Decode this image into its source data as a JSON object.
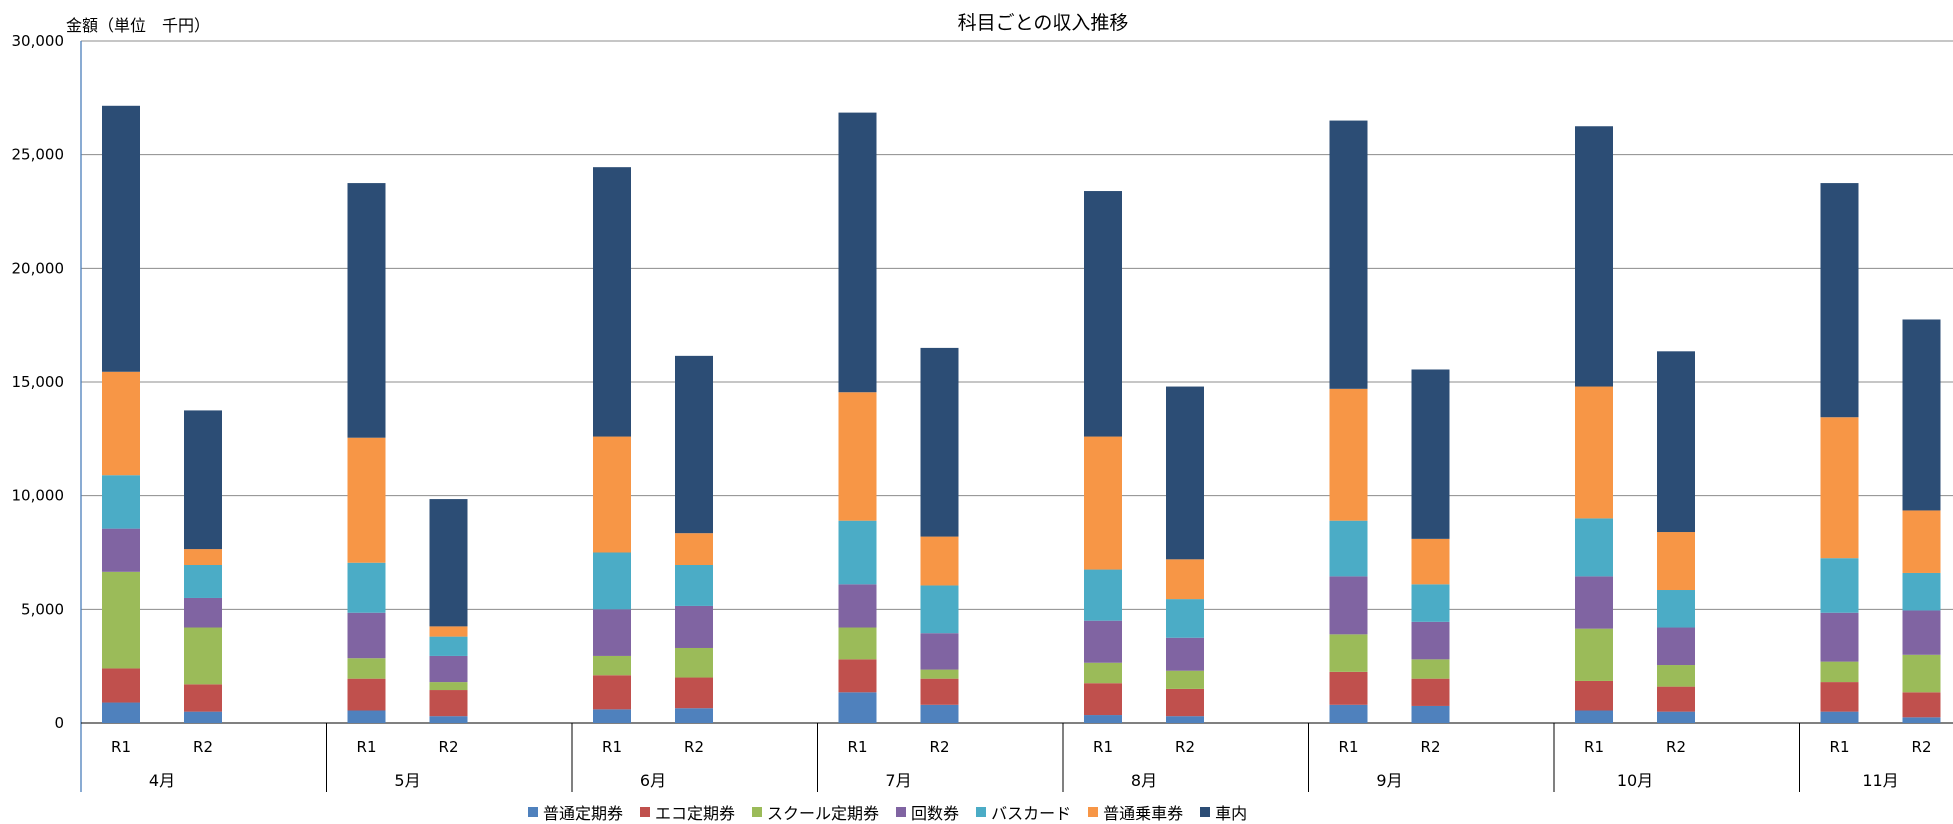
{
  "chart_data": {
    "type": "bar",
    "stacked": true,
    "title": "科目ごとの収入推移",
    "ylabel": "金額（単位　千円）",
    "ylim": [
      0,
      30000
    ],
    "yticks": [
      "0",
      "5,000",
      "10,000",
      "15,000",
      "20,000",
      "25,000",
      "30,000"
    ],
    "grid": true,
    "legend_position": "bottom",
    "months": [
      "4月",
      "5月",
      "6月",
      "7月",
      "8月",
      "9月",
      "10月",
      "11月"
    ],
    "sub_categories": [
      "R1",
      "R2"
    ],
    "series": [
      {
        "name": "普通定期券",
        "color": "#4f81bd",
        "values": [
          [
            900,
            500
          ],
          [
            550,
            300
          ],
          [
            600,
            650
          ],
          [
            1350,
            800
          ],
          [
            350,
            300
          ],
          [
            800,
            750
          ],
          [
            550,
            500
          ],
          [
            500,
            250
          ]
        ]
      },
      {
        "name": "エコ定期券",
        "color": "#c0504d",
        "values": [
          [
            1500,
            1200
          ],
          [
            1400,
            1150
          ],
          [
            1500,
            1350
          ],
          [
            1450,
            1150
          ],
          [
            1400,
            1200
          ],
          [
            1450,
            1200
          ],
          [
            1300,
            1100
          ],
          [
            1300,
            1100
          ]
        ]
      },
      {
        "name": "スクール定期券",
        "color": "#9bbb59",
        "values": [
          [
            4250,
            2500
          ],
          [
            900,
            350
          ],
          [
            850,
            1300
          ],
          [
            1400,
            400
          ],
          [
            900,
            800
          ],
          [
            1650,
            850
          ],
          [
            2300,
            950
          ],
          [
            900,
            1650
          ]
        ]
      },
      {
        "name": "回数券",
        "color": "#8064a2",
        "values": [
          [
            1900,
            1300
          ],
          [
            2000,
            1150
          ],
          [
            2050,
            1850
          ],
          [
            1900,
            1600
          ],
          [
            1850,
            1450
          ],
          [
            2550,
            1650
          ],
          [
            2300,
            1650
          ],
          [
            2150,
            1950
          ]
        ]
      },
      {
        "name": "バスカード",
        "color": "#4bacc6",
        "values": [
          [
            2350,
            1450
          ],
          [
            2200,
            850
          ],
          [
            2500,
            1800
          ],
          [
            2800,
            2100
          ],
          [
            2250,
            1700
          ],
          [
            2450,
            1650
          ],
          [
            2550,
            1650
          ],
          [
            2400,
            1650
          ]
        ]
      },
      {
        "name": "普通乗車券",
        "color": "#f79646",
        "values": [
          [
            4550,
            700
          ],
          [
            5500,
            450
          ],
          [
            5100,
            1400
          ],
          [
            5650,
            2150
          ],
          [
            5850,
            1750
          ],
          [
            5800,
            2000
          ],
          [
            5800,
            2550
          ],
          [
            6200,
            2750
          ]
        ]
      },
      {
        "name": "車内",
        "color": "#2c4d75",
        "values": [
          [
            11700,
            6100
          ],
          [
            11200,
            5600
          ],
          [
            11850,
            7800
          ],
          [
            12300,
            8300
          ],
          [
            10800,
            7600
          ],
          [
            11800,
            7450
          ],
          [
            11450,
            7950
          ],
          [
            10300,
            8400
          ]
        ]
      }
    ]
  }
}
